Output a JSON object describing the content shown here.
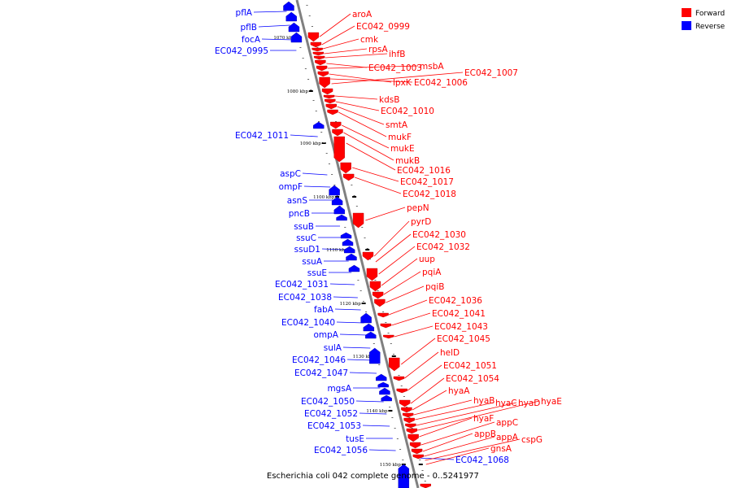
{
  "colors": {
    "forward": "#ff0000",
    "reverse": "#0000ff",
    "backbone": "#808080"
  },
  "legend": [
    {
      "label": "Forward",
      "strand": "forward"
    },
    {
      "label": "Reverse",
      "strand": "reverse"
    }
  ],
  "caption": "Escherichia coli 042 complete genome - 0..5241977",
  "ticks": [
    "1070 kbp",
    "1080 kbp",
    "1090 kbp",
    "1100 kbp",
    "1110 kbp",
    "1120 kbp",
    "1130 kbp",
    "1140 kbp",
    "1150 kbp"
  ],
  "genes_reverse": [
    "pflA",
    "pflB",
    "focA",
    "EC042_0995",
    "EC042_1011",
    "aspC",
    "ompF",
    "asnS",
    "pncB",
    "ssuB",
    "ssuC",
    "ssuD1",
    "ssuA",
    "ssuE",
    "EC042_1031",
    "EC042_1038",
    "fabA",
    "EC042_1040",
    "ompA",
    "sulA",
    "EC042_1046",
    "EC042_1047",
    "mgsA",
    "EC042_1050",
    "EC042_1052",
    "EC042_1053",
    "tusE",
    "EC042_1056",
    "EC042_1068"
  ],
  "genes_forward": [
    "aroA",
    "EC042_0999",
    "cmk",
    "rpsA",
    "ihfB",
    "EC042_1003",
    "msbA",
    "lpxK",
    "EC042_1006",
    "EC042_1007",
    "kdsB",
    "EC042_1010",
    "smtA",
    "mukF",
    "mukE",
    "mukB",
    "EC042_1016",
    "EC042_1017",
    "EC042_1018",
    "pepN",
    "pyrD",
    "EC042_1030",
    "EC042_1032",
    "uup",
    "pqiA",
    "pqiB",
    "EC042_1036",
    "EC042_1041",
    "EC042_1043",
    "EC042_1045",
    "helD",
    "EC042_1051",
    "EC042_1054",
    "hyaA",
    "hyaB",
    "hyaC",
    "hyaD",
    "hyaE",
    "hyaF",
    "appC",
    "appB",
    "appA",
    "cspG",
    "gnsA"
  ]
}
